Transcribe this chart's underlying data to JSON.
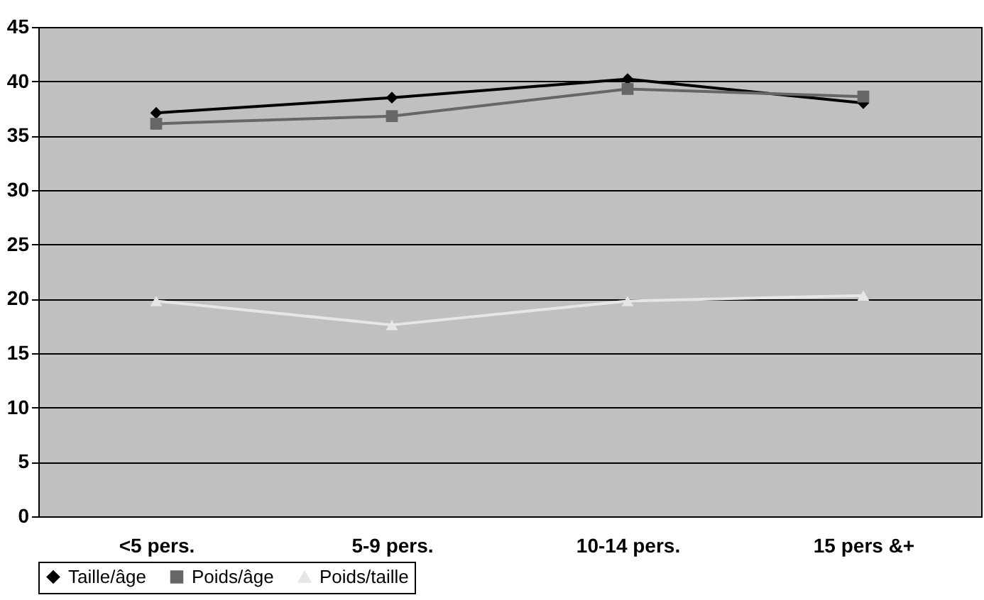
{
  "chart_data": {
    "type": "line",
    "categories": [
      "<5 pers.",
      "5-9 pers.",
      "10-14 pers.",
      "15 pers &+"
    ],
    "series": [
      {
        "name": "Taille/âge",
        "color": "#000000",
        "marker": "diamond",
        "values": [
          37.1,
          38.5,
          40.2,
          38.0
        ]
      },
      {
        "name": "Poids/âge",
        "color": "#666666",
        "marker": "square",
        "values": [
          36.1,
          36.8,
          39.3,
          38.6
        ]
      },
      {
        "name": "Poids/taille",
        "color": "#e6e6e6",
        "marker": "triangle",
        "values": [
          19.8,
          17.6,
          19.8,
          20.3
        ]
      }
    ],
    "ylim": [
      0,
      45
    ],
    "yticks": [
      0,
      5,
      10,
      15,
      20,
      25,
      30,
      35,
      40,
      45
    ],
    "grid": "y",
    "legend": "bottom",
    "line_style": "solid"
  }
}
